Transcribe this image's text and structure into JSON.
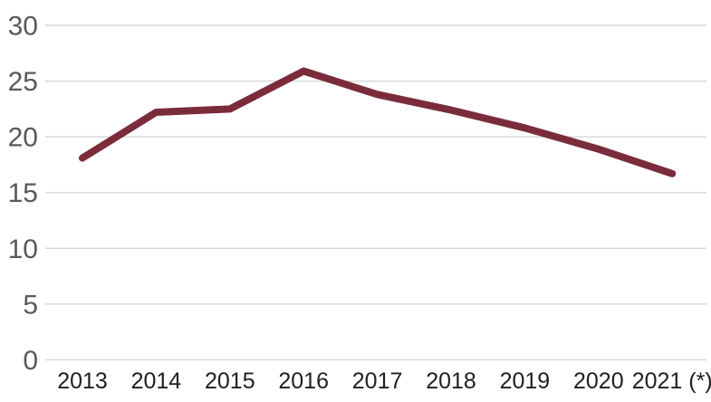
{
  "colors": {
    "background": "#FFFFFF",
    "line": "#7B2C3B",
    "gridline": "#D9D9D9",
    "y_tick_label": "#595959",
    "x_tick_label": "#1F1F1F"
  },
  "chart_data": {
    "type": "line",
    "title": "",
    "xlabel": "",
    "ylabel": "",
    "categories": [
      "2013",
      "2014",
      "2015",
      "2016",
      "2017",
      "2018",
      "2019",
      "2020",
      "2021 (*)"
    ],
    "series": [
      {
        "name": "",
        "values": [
          18.1,
          22.2,
          22.5,
          25.9,
          23.8,
          22.4,
          20.8,
          18.9,
          16.7
        ]
      }
    ],
    "ylim": [
      0,
      30
    ],
    "yticks": [
      0,
      5,
      10,
      15,
      20,
      25,
      30
    ],
    "grid": "horizontal",
    "legend": "none",
    "line_style": {
      "stroke_width_px": 8,
      "markers": "none",
      "linecap": "round",
      "linejoin": "round"
    }
  }
}
